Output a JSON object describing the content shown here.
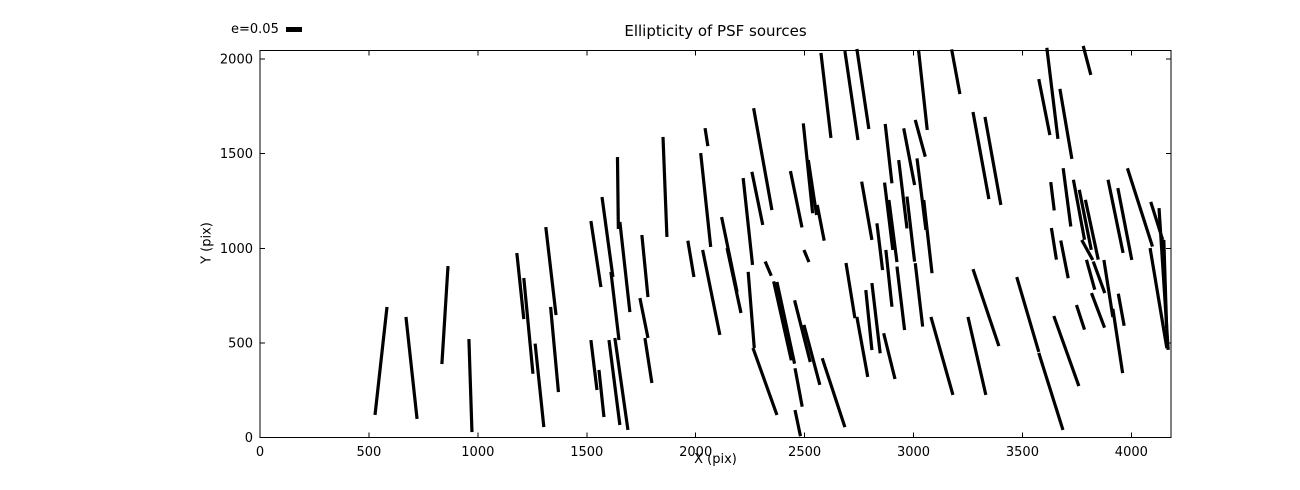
{
  "chart_data": {
    "type": "scatter",
    "marker": "stick-segment",
    "title": "Ellipticity of PSF sources",
    "xlabel": "X (pix)",
    "ylabel": "Y (pix)",
    "xlim": [
      0,
      4182
    ],
    "ylim": [
      0,
      2045
    ],
    "xticks": [
      0,
      500,
      1000,
      1500,
      2000,
      2500,
      3000,
      3500,
      4000
    ],
    "yticks": [
      0,
      500,
      1000,
      1500,
      2000
    ],
    "grid": false,
    "legend": {
      "label": "e=0.05",
      "position": "top-left-outside"
    },
    "stick_color": "#000000",
    "sticks": [
      [
        583,
        690,
        528,
        119
      ],
      [
        670,
        637,
        721,
        98
      ],
      [
        863,
        906,
        835,
        388
      ],
      [
        959,
        520,
        973,
        29
      ],
      [
        1179,
        975,
        1211,
        626
      ],
      [
        1211,
        843,
        1253,
        337
      ],
      [
        1312,
        1112,
        1359,
        647
      ],
      [
        1334,
        690,
        1370,
        240
      ],
      [
        1263,
        496,
        1303,
        55
      ],
      [
        1519,
        1144,
        1565,
        795
      ],
      [
        1570,
        1271,
        1620,
        848
      ],
      [
        1611,
        875,
        1648,
        515
      ],
      [
        1641,
        1482,
        1645,
        1102
      ],
      [
        1652,
        1139,
        1698,
        663
      ],
      [
        1753,
        1070,
        1781,
        742
      ],
      [
        1744,
        737,
        1781,
        526
      ],
      [
        1767,
        526,
        1799,
        288
      ],
      [
        1519,
        515,
        1547,
        251
      ],
      [
        1556,
        357,
        1579,
        108
      ],
      [
        1602,
        515,
        1652,
        66
      ],
      [
        1629,
        526,
        1689,
        40
      ],
      [
        1850,
        1588,
        1868,
        1060
      ],
      [
        2043,
        1635,
        2056,
        1540
      ],
      [
        2023,
        1503,
        2069,
        1007
      ],
      [
        1964,
        1040,
        1992,
        848
      ],
      [
        2032,
        991,
        2111,
        542
      ],
      [
        2119,
        1165,
        2190,
        769
      ],
      [
        2144,
        1001,
        2208,
        658
      ],
      [
        2218,
        1371,
        2261,
        912
      ],
      [
        2241,
        875,
        2269,
        473
      ],
      [
        2266,
        1740,
        2350,
        1202
      ],
      [
        2258,
        1404,
        2308,
        1123
      ],
      [
        2435,
        1408,
        2488,
        1110
      ],
      [
        2494,
        1660,
        2537,
        1185
      ],
      [
        2517,
        1466,
        2555,
        1176
      ],
      [
        2558,
        1229,
        2590,
        1040
      ],
      [
        2497,
        991,
        2520,
        927
      ],
      [
        2575,
        2032,
        2621,
        1583
      ],
      [
        2685,
        2042,
        2745,
        1572
      ],
      [
        2740,
        2053,
        2795,
        1630
      ],
      [
        2762,
        1352,
        2809,
        1044
      ],
      [
        2319,
        930,
        2347,
        855
      ],
      [
        2358,
        825,
        2439,
        408
      ],
      [
        2373,
        822,
        2454,
        390
      ],
      [
        2454,
        725,
        2526,
        399
      ],
      [
        2263,
        473,
        2373,
        119
      ],
      [
        2497,
        595,
        2570,
        278
      ],
      [
        2581,
        419,
        2685,
        55
      ],
      [
        2456,
        366,
        2489,
        163
      ],
      [
        2456,
        145,
        2481,
        7
      ],
      [
        2690,
        922,
        2731,
        631
      ],
      [
        2740,
        637,
        2790,
        320
      ],
      [
        2781,
        779,
        2809,
        462
      ],
      [
        2809,
        816,
        2847,
        445
      ],
      [
        2870,
        1657,
        2901,
        1343
      ],
      [
        2955,
        1634,
        3005,
        1334
      ],
      [
        3008,
        1678,
        3054,
        1484
      ],
      [
        2867,
        1347,
        2905,
        991
      ],
      [
        2887,
        1255,
        2924,
        927
      ],
      [
        2932,
        1466,
        2970,
        1105
      ],
      [
        2970,
        1273,
        3005,
        929
      ],
      [
        3016,
        1475,
        3057,
        1097
      ],
      [
        3047,
        1255,
        3085,
        868
      ],
      [
        2832,
        1132,
        2858,
        885
      ],
      [
        2873,
        991,
        2901,
        691
      ],
      [
        2924,
        903,
        2959,
        568
      ],
      [
        3008,
        921,
        3042,
        586
      ],
      [
        2863,
        551,
        2915,
        309
      ],
      [
        3023,
        2048,
        3063,
        1625
      ],
      [
        3175,
        2051,
        3213,
        1815
      ],
      [
        3273,
        1720,
        3346,
        1260
      ],
      [
        3328,
        1694,
        3401,
        1229
      ],
      [
        3575,
        1894,
        3626,
        1598
      ],
      [
        3612,
        2059,
        3663,
        1578
      ],
      [
        3672,
        1842,
        3727,
        1472
      ],
      [
        3779,
        2069,
        3814,
        1916
      ],
      [
        3687,
        1423,
        3722,
        1115
      ],
      [
        3734,
        1362,
        3785,
        1045
      ],
      [
        3761,
        1309,
        3816,
        992
      ],
      [
        3789,
        1256,
        3848,
        940
      ],
      [
        3794,
        939,
        3832,
        781
      ],
      [
        3825,
        930,
        3878,
        763
      ],
      [
        3817,
        763,
        3877,
        580
      ],
      [
        3630,
        1350,
        3646,
        1200
      ],
      [
        3633,
        1107,
        3656,
        940
      ],
      [
        3748,
        700,
        3785,
        570
      ],
      [
        3676,
        1041,
        3710,
        842
      ],
      [
        3893,
        1362,
        3962,
        975
      ],
      [
        3938,
        1318,
        4002,
        938
      ],
      [
        3915,
        680,
        3960,
        340
      ],
      [
        3940,
        760,
        3967,
        590
      ],
      [
        3982,
        1423,
        4097,
        1009
      ],
      [
        4086,
        1001,
        4163,
        472
      ],
      [
        4127,
        1212,
        4169,
        463
      ],
      [
        4089,
        1245,
        4144,
        1044
      ],
      [
        4149,
        1044,
        4162,
        579
      ],
      [
        3080,
        637,
        3181,
        225
      ],
      [
        3250,
        637,
        3332,
        225
      ],
      [
        3273,
        890,
        3392,
        483
      ],
      [
        3474,
        848,
        3575,
        452
      ],
      [
        3575,
        447,
        3686,
        40
      ],
      [
        3644,
        642,
        3759,
        272
      ],
      [
        3772,
        1044,
        3823,
        938
      ],
      [
        3874,
        938,
        3915,
        637
      ]
    ]
  }
}
